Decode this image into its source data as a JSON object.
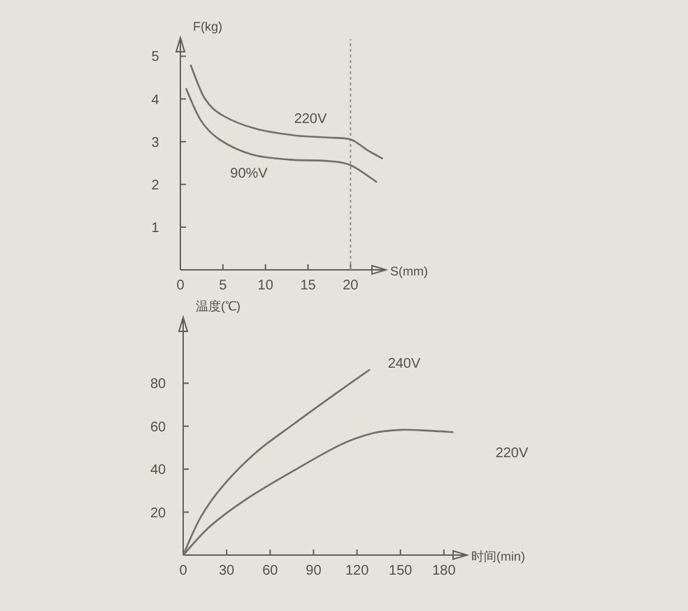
{
  "chart_data": [
    {
      "type": "line",
      "xlabel": "S(mm)",
      "ylabel": "F(kg)",
      "xlim": [
        0,
        24
      ],
      "ylim": [
        0,
        5.4
      ],
      "xticks": [
        0,
        5,
        10,
        15,
        20
      ],
      "yticks": [
        1,
        2,
        3,
        4,
        5
      ],
      "series": [
        {
          "color": "#707070",
          "x": [
            1.2,
            2.9,
            5.1,
            8.9,
            13.3,
            17.1,
            20,
            22,
            23.8
          ],
          "values": [
            4.8,
            4.0,
            3.6,
            3.3,
            3.15,
            3.1,
            3.05,
            2.8,
            2.6
          ]
        },
        {
          "color": "#707070",
          "x": [
            0.65,
            2.4,
            4.6,
            8.4,
            12.8,
            17.1,
            20,
            23.1
          ],
          "values": [
            4.25,
            3.5,
            3.05,
            2.7,
            2.58,
            2.55,
            2.45,
            2.05
          ]
        }
      ],
      "ref_lines": [
        {
          "axis": "x",
          "value": 20,
          "line_style": "dotted",
          "color": "#909090"
        }
      ],
      "annotations": [
        "220V",
        "90%V"
      ]
    },
    {
      "type": "line",
      "xlabel": "时间(min)",
      "ylabel": "温度(℃)",
      "xlim": [
        0,
        195
      ],
      "ylim": [
        0,
        110
      ],
      "xticks": [
        0,
        30,
        60,
        90,
        120,
        150,
        180
      ],
      "yticks": [
        20,
        40,
        60,
        80
      ],
      "series": [
        {
          "color": "#707070",
          "x": [
            0,
            12.2,
            28.3,
            50.8,
            76.5,
            105.4,
            128.9
          ],
          "values": [
            0,
            17.8,
            32.9,
            48.1,
            61.1,
            75.2,
            86.4
          ]
        },
        {
          "color": "#707070",
          "x": [
            0,
            18.6,
            44.4,
            76.5,
            108.7,
            131.2,
            150.4,
            169.7,
            186.5
          ],
          "values": [
            0,
            13.4,
            26.4,
            39.4,
            51.4,
            56.8,
            58.3,
            57.9,
            57.2
          ]
        }
      ],
      "annotations": [
        "240V",
        "220V"
      ]
    }
  ]
}
